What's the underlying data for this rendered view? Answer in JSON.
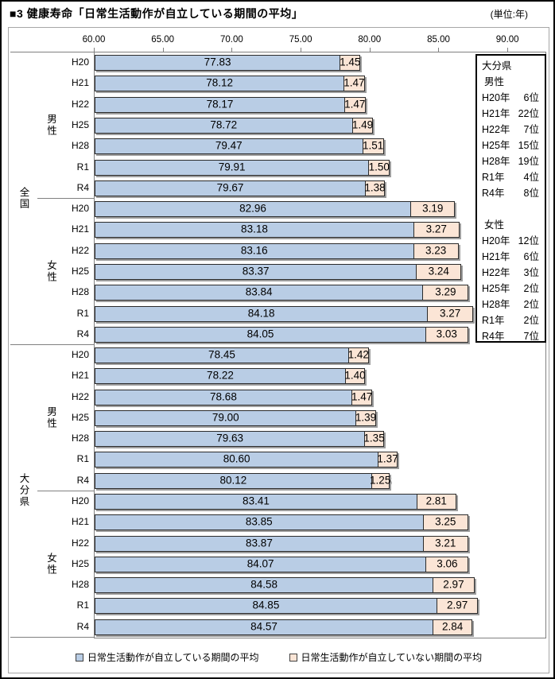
{
  "title": "■3 健康寿命「日常生活動作が自立している期間の平均」",
  "unit_label": "(単位:年)",
  "chart_data": {
    "type": "bar",
    "orientation": "horizontal",
    "stacked": true,
    "grid": false,
    "x_ticks": [
      "60.00",
      "65.00",
      "70.00",
      "75.00",
      "80.00",
      "85.00",
      "90.00"
    ],
    "xlim": [
      60,
      92.7
    ],
    "years": [
      "H20",
      "H21",
      "H22",
      "H25",
      "H28",
      "R1",
      "R4"
    ],
    "regions": [
      "全国",
      "大分県"
    ],
    "groups": [
      {
        "region": "全国",
        "gender": "男性",
        "independent": [
          77.83,
          78.12,
          78.17,
          78.72,
          79.47,
          79.91,
          79.67
        ],
        "dependent": [
          1.45,
          1.47,
          1.47,
          1.49,
          1.51,
          1.5,
          1.38
        ]
      },
      {
        "region": "全国",
        "gender": "女性",
        "independent": [
          82.96,
          83.18,
          83.16,
          83.37,
          83.84,
          84.18,
          84.05
        ],
        "dependent": [
          3.19,
          3.27,
          3.23,
          3.24,
          3.29,
          3.27,
          3.03
        ]
      },
      {
        "region": "大分県",
        "gender": "男性",
        "independent": [
          78.45,
          78.22,
          78.68,
          79.0,
          79.63,
          80.6,
          80.12
        ],
        "dependent": [
          1.42,
          1.4,
          1.47,
          1.39,
          1.35,
          1.37,
          1.25
        ]
      },
      {
        "region": "大分県",
        "gender": "女性",
        "independent": [
          83.41,
          83.85,
          83.87,
          84.07,
          84.58,
          84.85,
          84.57
        ],
        "dependent": [
          2.81,
          3.25,
          3.21,
          3.06,
          2.97,
          2.97,
          2.84
        ]
      }
    ],
    "annotation_box": {
      "title": "大分県",
      "sections": [
        {
          "label": "男性",
          "rows": [
            [
              "H20年",
              "6位"
            ],
            [
              "H21年",
              "22位"
            ],
            [
              "H22年",
              "7位"
            ],
            [
              "H25年",
              "15位"
            ],
            [
              "H28年",
              "19位"
            ],
            [
              "R1年",
              "4位"
            ],
            [
              "R4年",
              "8位"
            ]
          ]
        },
        {
          "label": "女性",
          "rows": [
            [
              "H20年",
              "12位"
            ],
            [
              "H21年",
              "6位"
            ],
            [
              "H22年",
              "3位"
            ],
            [
              "H25年",
              "2位"
            ],
            [
              "H28年",
              "2位"
            ],
            [
              "R1年",
              "2位"
            ],
            [
              "R4年",
              "7位"
            ]
          ]
        }
      ]
    },
    "legend": [
      {
        "label": "日常生活動作が自立している期間の平均",
        "fill": "#B9CDE5",
        "border": "#404040"
      },
      {
        "label": "日常生活動作が自立していない期間の平均",
        "fill": "#FBE5D6",
        "border": "#404040"
      }
    ]
  },
  "colors": {
    "independent_fill": "#B9CDE5",
    "dependent_fill": "#FBE5D6",
    "bar_border": "#2B2B2B",
    "shadow": "#9E9E9E",
    "frame_border": "#A6A6A6",
    "separator": "#808080"
  }
}
